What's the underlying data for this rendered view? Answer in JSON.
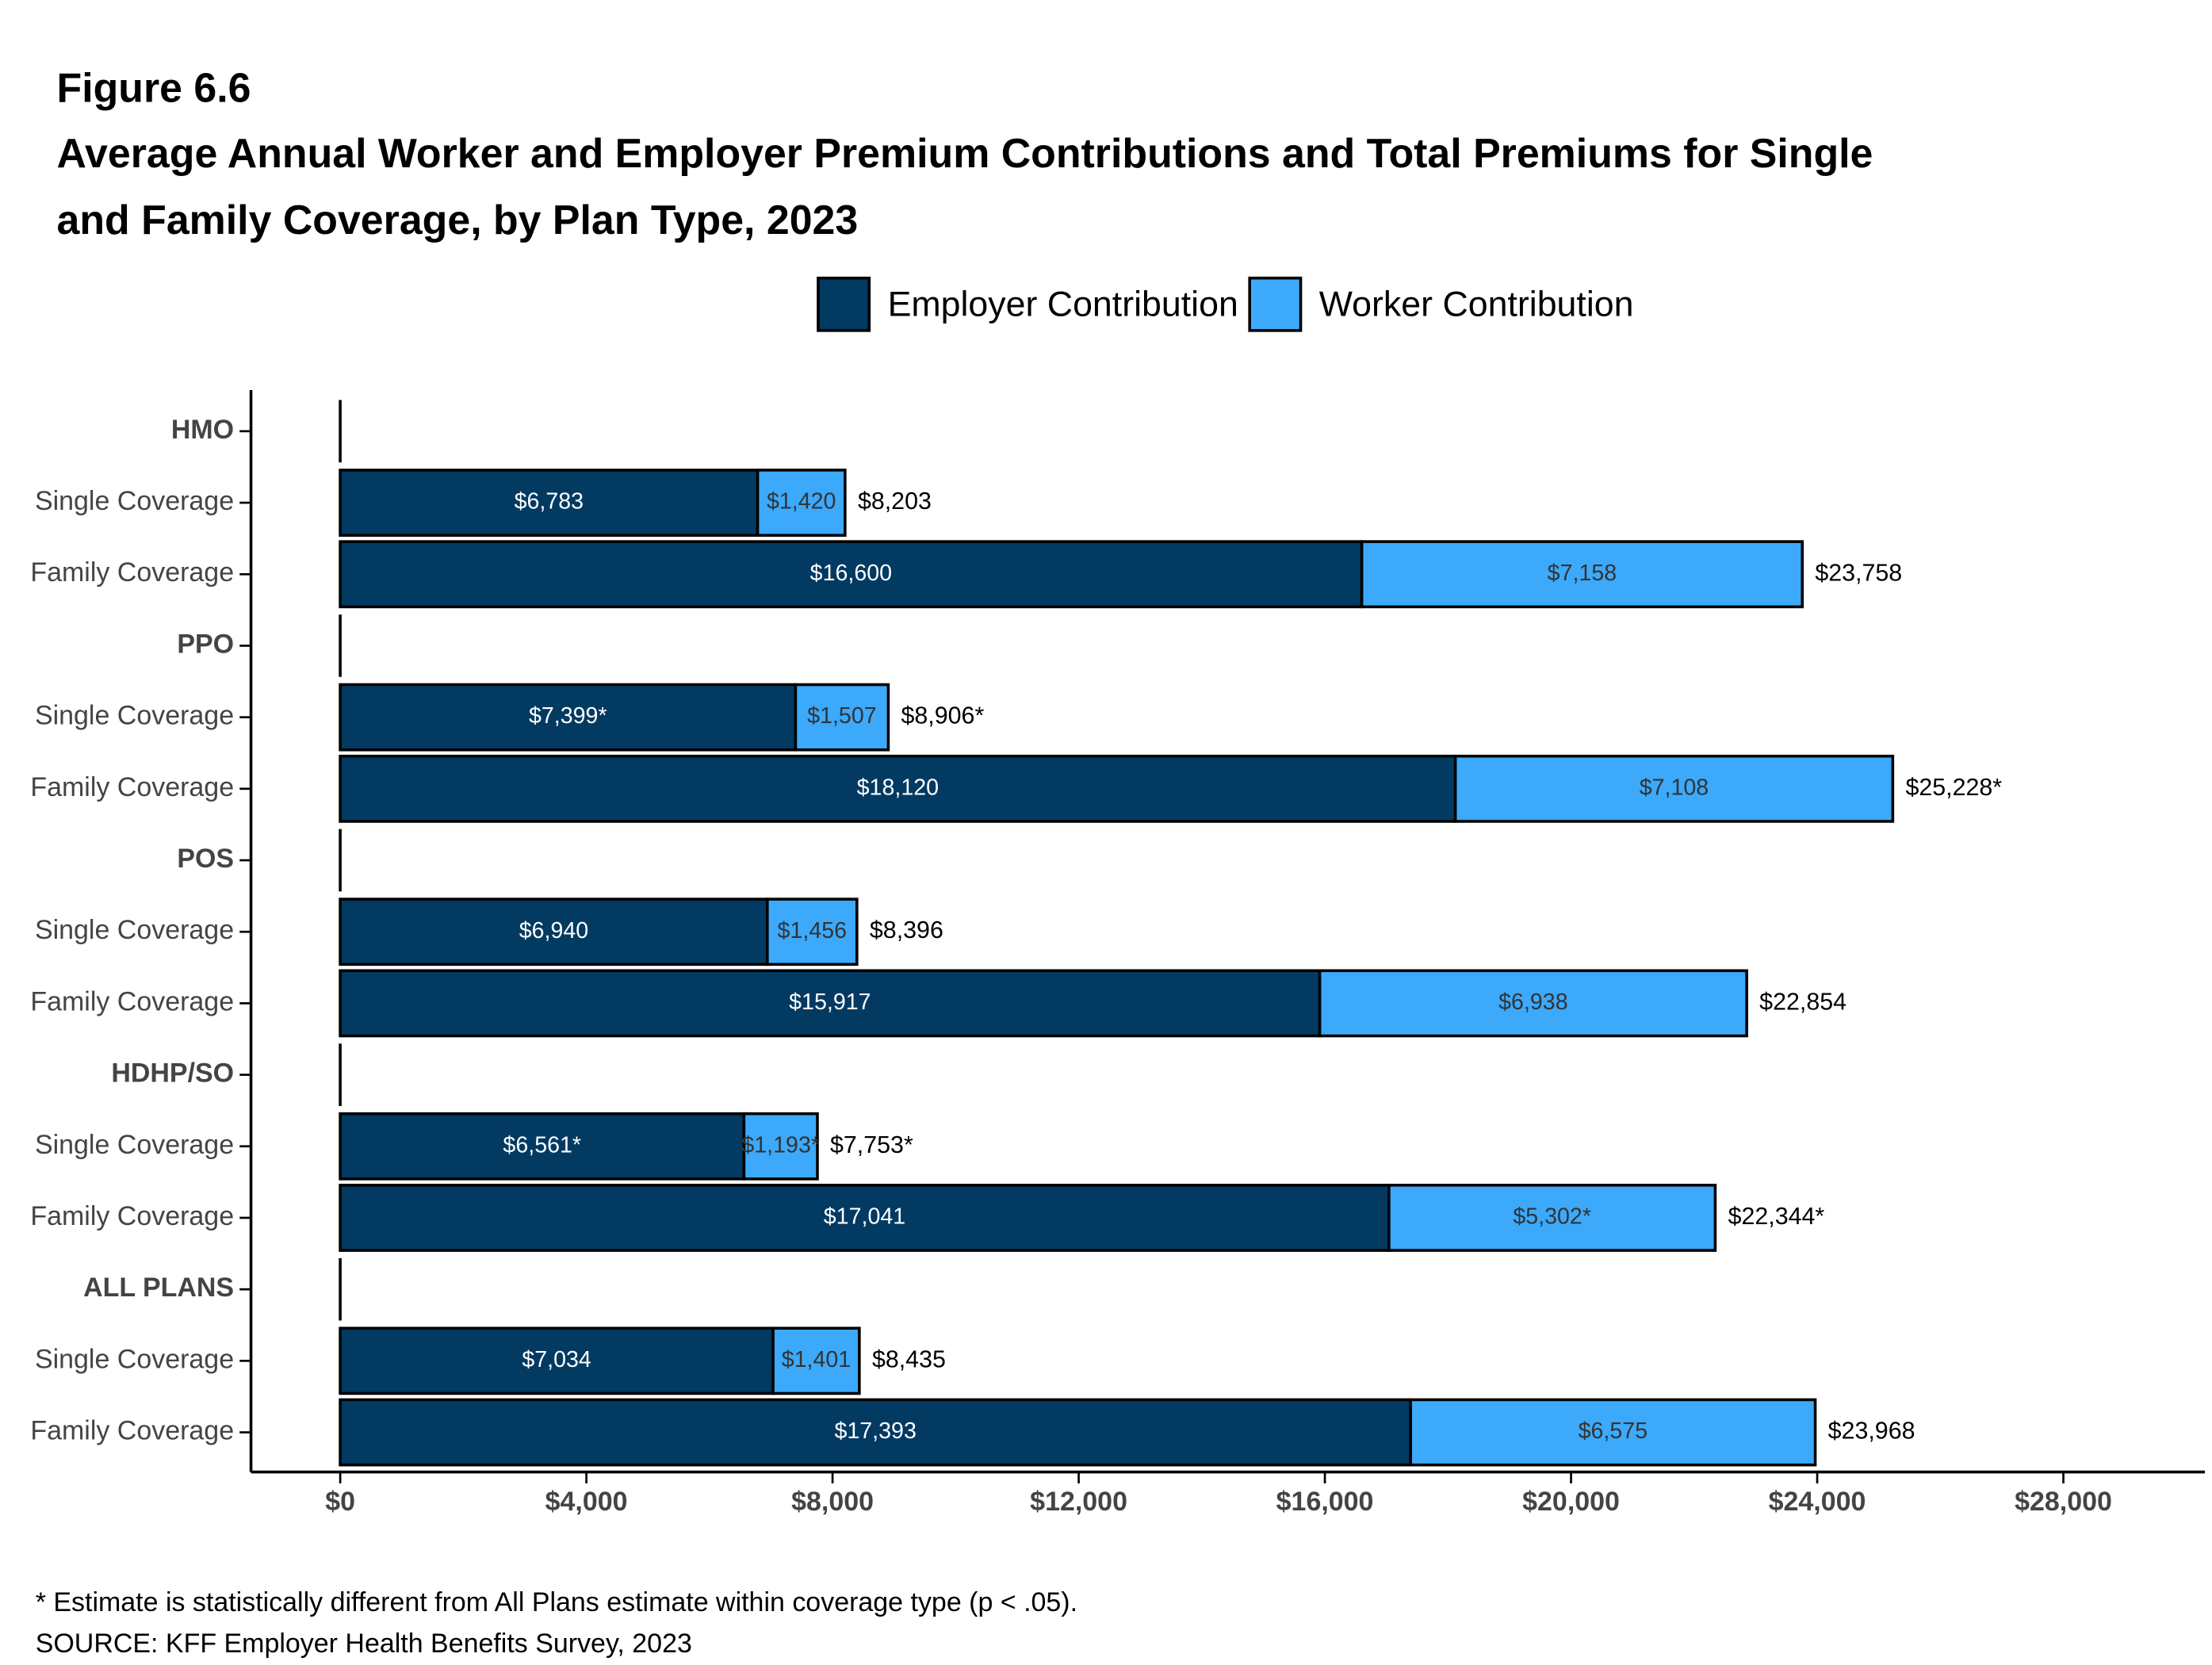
{
  "chart_data": {
    "type": "stacked-barh",
    "figure_label": "Figure 6.6",
    "title": "Average Annual Worker and Employer Premium Contributions and Total Premiums for Single and Family Coverage, by Plan Type, 2023",
    "categories": [
      "HMO",
      "Single Coverage",
      "Family Coverage",
      "PPO",
      "Single Coverage",
      "Family Coverage",
      "POS",
      "Single Coverage",
      "Family Coverage",
      "HDHP/SO",
      "Single Coverage",
      "Family Coverage",
      "ALL PLANS",
      "Single Coverage",
      "Family Coverage"
    ],
    "series": [
      {
        "name": "Employer Contribution",
        "color": "#023a62",
        "values": [
          null,
          6783,
          16600,
          null,
          7399,
          18120,
          null,
          6940,
          15917,
          null,
          6561,
          17041,
          null,
          7034,
          17393
        ],
        "value_labels": [
          null,
          "$6,783",
          "$16,600",
          null,
          "$7,399*",
          "$18,120",
          null,
          "$6,940",
          "$15,917",
          null,
          "$6,561*",
          "$17,041",
          null,
          "$7,034",
          "$17,393"
        ]
      },
      {
        "name": "Worker Contribution",
        "color": "#3ca9fb",
        "values": [
          null,
          1420,
          7158,
          null,
          1507,
          7108,
          null,
          1456,
          6938,
          null,
          1193,
          5302,
          null,
          1401,
          6575
        ],
        "value_labels": [
          null,
          "$1,420",
          "$7,158",
          null,
          "$1,507",
          "$7,108",
          null,
          "$1,456",
          "$6,938",
          null,
          "$1,193*",
          "$5,302*",
          null,
          "$1,401",
          "$6,575"
        ]
      }
    ],
    "totals": {
      "values": [
        null,
        8203,
        23758,
        null,
        8906,
        25228,
        null,
        8396,
        22854,
        null,
        7753,
        22344,
        null,
        8435,
        23968
      ],
      "value_labels": [
        null,
        "$8,203",
        "$23,758",
        null,
        "$8,906*",
        "$25,228*",
        null,
        "$8,396",
        "$22,854",
        null,
        "$7,753*",
        "$22,344*",
        null,
        "$8,435",
        "$23,968"
      ]
    },
    "xlim": [
      -1450,
      30300
    ],
    "xticks": [
      {
        "value": 0,
        "label": "$0"
      },
      {
        "value": 4000,
        "label": "$4,000"
      },
      {
        "value": 8000,
        "label": "$8,000"
      },
      {
        "value": 12000,
        "label": "$12,000"
      },
      {
        "value": 16000,
        "label": "$16,000"
      },
      {
        "value": 20000,
        "label": "$20,000"
      },
      {
        "value": 24000,
        "label": "$24,000"
      },
      {
        "value": 28000,
        "label": "$28,000"
      }
    ],
    "footnotes": [
      "* Estimate is statistically different from All Plans estimate within coverage type (p < .05).",
      "SOURCE: KFF Employer Health Benefits Survey, 2023"
    ]
  }
}
